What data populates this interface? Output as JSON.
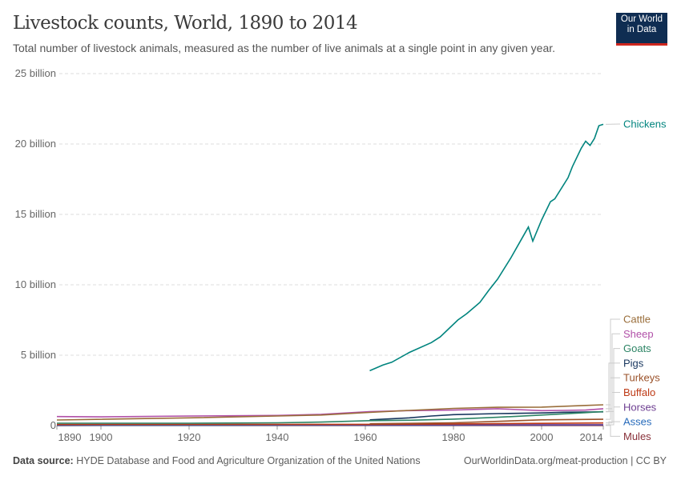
{
  "header": {
    "title": "Livestock counts, World, 1890 to 2014",
    "subtitle": "Total number of livestock animals, measured as the number of live animals at a single point in any given year.",
    "logo_line1": "Our World",
    "logo_line2": "in Data"
  },
  "footer": {
    "source_label": "Data source:",
    "source_text": "HYDE Database and Food and Agriculture Organization of the United Nations",
    "url_license": "OurWorldinData.org/meat-production | CC BY"
  },
  "chart_data": {
    "type": "line",
    "title": "Livestock counts, World, 1890 to 2014",
    "xlim": [
      1890,
      2014
    ],
    "ylim": [
      0,
      25
    ],
    "y_unit": "billion",
    "grid": "horizontal dashed",
    "legend": "right (line-end labels)",
    "x_ticks": [
      "1890",
      "1900",
      "1920",
      "1940",
      "1960",
      "1980",
      "2000",
      "2014"
    ],
    "y_ticks": [
      "0",
      "5 billion",
      "10 billion",
      "15 billion",
      "20 billion",
      "25 billion"
    ],
    "series": [
      {
        "name": "Chickens",
        "color": "#00847e",
        "points": [
          [
            1961,
            3.9
          ],
          [
            1964,
            4.3
          ],
          [
            1966,
            4.5
          ],
          [
            1970,
            5.2
          ],
          [
            1975,
            5.9
          ],
          [
            1977,
            6.3
          ],
          [
            1981,
            7.5
          ],
          [
            1983,
            7.95
          ],
          [
            1986,
            8.75
          ],
          [
            1988,
            9.6
          ],
          [
            1990,
            10.4
          ],
          [
            1993,
            11.9
          ],
          [
            1995,
            13.0
          ],
          [
            1997,
            14.1
          ],
          [
            1998,
            13.1
          ],
          [
            2000,
            14.6
          ],
          [
            2002,
            15.9
          ],
          [
            2003,
            16.1
          ],
          [
            2006,
            17.6
          ],
          [
            2007,
            18.4
          ],
          [
            2009,
            19.7
          ],
          [
            2010,
            20.2
          ],
          [
            2011,
            19.9
          ],
          [
            2012,
            20.4
          ],
          [
            2013,
            21.3
          ],
          [
            2014,
            21.4
          ]
        ]
      },
      {
        "name": "Cattle",
        "color": "#996d39",
        "points": [
          [
            1890,
            0.4
          ],
          [
            1920,
            0.55
          ],
          [
            1940,
            0.68
          ],
          [
            1950,
            0.75
          ],
          [
            1961,
            0.94
          ],
          [
            1970,
            1.08
          ],
          [
            1980,
            1.22
          ],
          [
            1990,
            1.3
          ],
          [
            2000,
            1.31
          ],
          [
            2010,
            1.43
          ],
          [
            2014,
            1.48
          ]
        ]
      },
      {
        "name": "Sheep",
        "color": "#b150a8",
        "points": [
          [
            1890,
            0.64
          ],
          [
            1900,
            0.62
          ],
          [
            1920,
            0.68
          ],
          [
            1940,
            0.72
          ],
          [
            1950,
            0.8
          ],
          [
            1961,
            0.99
          ],
          [
            1970,
            1.06
          ],
          [
            1980,
            1.1
          ],
          [
            1990,
            1.2
          ],
          [
            2000,
            1.06
          ],
          [
            2005,
            1.08
          ],
          [
            2010,
            1.1
          ],
          [
            2014,
            1.2
          ]
        ]
      },
      {
        "name": "Goats",
        "color": "#2c8465",
        "points": [
          [
            1890,
            0.17
          ],
          [
            1920,
            0.17
          ],
          [
            1940,
            0.2
          ],
          [
            1950,
            0.25
          ],
          [
            1961,
            0.35
          ],
          [
            1970,
            0.38
          ],
          [
            1980,
            0.46
          ],
          [
            1990,
            0.59
          ],
          [
            2000,
            0.75
          ],
          [
            2010,
            0.92
          ],
          [
            2014,
            1.0
          ]
        ]
      },
      {
        "name": "Pigs",
        "color": "#18365e",
        "points": [
          [
            1961,
            0.41
          ],
          [
            1970,
            0.55
          ],
          [
            1975,
            0.68
          ],
          [
            1980,
            0.78
          ],
          [
            1990,
            0.85
          ],
          [
            2000,
            0.9
          ],
          [
            2005,
            0.95
          ],
          [
            2014,
            0.98
          ]
        ]
      },
      {
        "name": "Turkeys",
        "color": "#9a5129",
        "points": [
          [
            1961,
            0.13
          ],
          [
            1970,
            0.16
          ],
          [
            1980,
            0.2
          ],
          [
            1990,
            0.3
          ],
          [
            2000,
            0.41
          ],
          [
            2014,
            0.45
          ]
        ]
      },
      {
        "name": "Buffalo",
        "color": "#be3a15",
        "points": [
          [
            1890,
            0.08
          ],
          [
            1920,
            0.08
          ],
          [
            1961,
            0.09
          ],
          [
            1980,
            0.12
          ],
          [
            2000,
            0.16
          ],
          [
            2014,
            0.19
          ]
        ]
      },
      {
        "name": "Horses",
        "color": "#6d3e91",
        "points": [
          [
            1890,
            0.07
          ],
          [
            1920,
            0.08
          ],
          [
            1961,
            0.06
          ],
          [
            1990,
            0.06
          ],
          [
            2014,
            0.06
          ]
        ]
      },
      {
        "name": "Asses",
        "color": "#286bbb",
        "points": [
          [
            1890,
            0.02
          ],
          [
            1940,
            0.03
          ],
          [
            1961,
            0.03
          ],
          [
            2000,
            0.04
          ],
          [
            2014,
            0.044
          ]
        ]
      },
      {
        "name": "Mules",
        "color": "#883039",
        "points": [
          [
            1890,
            0.005
          ],
          [
            1961,
            0.01
          ],
          [
            2014,
            0.01
          ]
        ]
      }
    ]
  }
}
